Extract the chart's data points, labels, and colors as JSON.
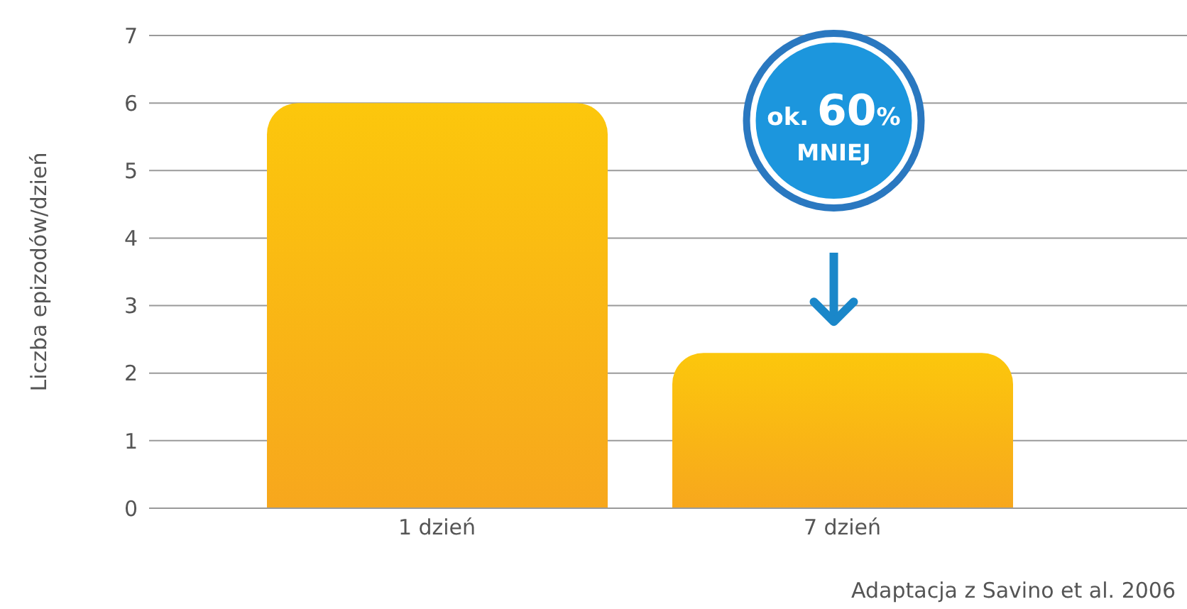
{
  "chart_data": {
    "type": "bar",
    "ylabel": "Liczba epizodów/dzień",
    "categories": [
      "1 dzień",
      "7 dzień"
    ],
    "values": [
      6,
      2.3
    ],
    "color": "#fcc70c",
    "ylim": [
      0,
      7
    ],
    "yticks": [
      0,
      1,
      2,
      3,
      4,
      5,
      6,
      7
    ],
    "grid": "y",
    "legend": false,
    "annotations": [
      "ok. 60% MNIEJ",
      "Adaptacja z Savino et al. 2006"
    ]
  }
}
